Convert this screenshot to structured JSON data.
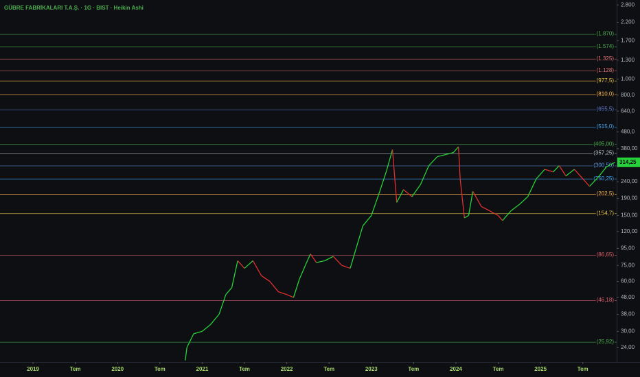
{
  "chart_data": {
    "type": "line",
    "title": "GÜBRE FABRİKALARI T.A.Ş. · 1G · BIST · Heikin Ashi",
    "log_scale": true,
    "up_color": "#26d13a",
    "down_color": "#e0302f",
    "xlim": [
      2018.61,
      2025.9
    ],
    "xticks": [
      {
        "value": 2019,
        "label": "2019"
      },
      {
        "value": 2019.5,
        "label": "Tem"
      },
      {
        "value": 2020,
        "label": "2020"
      },
      {
        "value": 2020.5,
        "label": "Tem"
      },
      {
        "value": 2021,
        "label": "2021"
      },
      {
        "value": 2021.5,
        "label": "Tem"
      },
      {
        "value": 2022,
        "label": "2022"
      },
      {
        "value": 2022.5,
        "label": "Tem"
      },
      {
        "value": 2023,
        "label": "2023"
      },
      {
        "value": 2023.5,
        "label": "Tem"
      },
      {
        "value": 2024,
        "label": "2024"
      },
      {
        "value": 2024.5,
        "label": "Tem"
      },
      {
        "value": 2025,
        "label": "2025"
      },
      {
        "value": 2025.5,
        "label": "Tem"
      }
    ],
    "ylim": [
      19.6,
      3000
    ],
    "yticks": [
      {
        "value": 24,
        "label": "24,00"
      },
      {
        "value": 30,
        "label": "30,00"
      },
      {
        "value": 38,
        "label": "38,00"
      },
      {
        "value": 48,
        "label": "48,00"
      },
      {
        "value": 60,
        "label": "60,00"
      },
      {
        "value": 75,
        "label": "75,00"
      },
      {
        "value": 95,
        "label": "95,00"
      },
      {
        "value": 120,
        "label": "120,00"
      },
      {
        "value": 150,
        "label": "150,00"
      },
      {
        "value": 190,
        "label": "190,00"
      },
      {
        "value": 240,
        "label": "240,00"
      },
      {
        "value": 380,
        "label": "380,00"
      },
      {
        "value": 480,
        "label": "480,0"
      },
      {
        "value": 640,
        "label": "640,0"
      },
      {
        "value": 800,
        "label": "800,0"
      },
      {
        "value": 1000,
        "label": "1.000"
      },
      {
        "value": 1300,
        "label": "1.300"
      },
      {
        "value": 1700,
        "label": "1.700"
      },
      {
        "value": 2200,
        "label": "2.200"
      },
      {
        "value": 2800,
        "label": "2.800"
      }
    ],
    "levels": [
      {
        "value": 1870,
        "label": "(1.870)",
        "color": "#4caf50"
      },
      {
        "value": 1574,
        "label": "(1.574)",
        "color": "#4caf50"
      },
      {
        "value": 1325,
        "label": "(1.325)",
        "color": "#e57373"
      },
      {
        "value": 1128,
        "label": "(1.128)",
        "color": "#e57373"
      },
      {
        "value": 977.5,
        "label": "(977,5)",
        "color": "#f0c040"
      },
      {
        "value": 810,
        "label": "(810,0)",
        "color": "#ffb74d"
      },
      {
        "value": 655.5,
        "label": "(655,5)",
        "color": "#5c7bd6"
      },
      {
        "value": 515,
        "label": "(515,0)",
        "color": "#42a5f5"
      },
      {
        "value": 405,
        "label": "(405,00)",
        "color": "#4caf50"
      },
      {
        "value": 357.25,
        "label": "(357,25)",
        "color": "#b0bec5"
      },
      {
        "value": 300.5,
        "label": "(300,50)",
        "color": "#5c9ce6"
      },
      {
        "value": 250.25,
        "label": "(250,25)",
        "color": "#42a5f5"
      },
      {
        "value": 202.5,
        "label": "(202,5)",
        "color": "#ffb74d"
      },
      {
        "value": 154.7,
        "label": "(154,7)",
        "color": "#e0c050"
      },
      {
        "value": 86.65,
        "label": "(86,65)",
        "color": "#e06070"
      },
      {
        "value": 46.18,
        "label": "(46,18)",
        "color": "#e06070"
      },
      {
        "value": 25.92,
        "label": "(25,92)",
        "color": "#4caf50"
      }
    ],
    "last_price_label": "314,25",
    "x": [
      2020.8,
      2020.82,
      2020.9,
      2021.0,
      2021.1,
      2021.2,
      2021.28,
      2021.35,
      2021.42,
      2021.5,
      2021.6,
      2021.7,
      2021.8,
      2021.9,
      2022.0,
      2022.08,
      2022.15,
      2022.22,
      2022.28,
      2022.35,
      2022.45,
      2022.55,
      2022.65,
      2022.75,
      2022.82,
      2022.9,
      2023.0,
      2023.1,
      2023.18,
      2023.25,
      2023.3,
      2023.38,
      2023.48,
      2023.58,
      2023.68,
      2023.78,
      2023.88,
      2023.97,
      2024.03,
      2024.05,
      2024.1,
      2024.15,
      2024.2,
      2024.3,
      2024.4,
      2024.5,
      2024.55,
      2024.65,
      2024.75,
      2024.85,
      2024.95,
      2025.05,
      2025.15,
      2025.22,
      2025.3,
      2025.4,
      2025.5,
      2025.58,
      2025.68,
      2025.78,
      2025.88
    ],
    "series": [
      {
        "values": [
          20,
          24,
          29,
          30,
          33,
          38,
          50,
          55,
          80,
          72,
          80,
          65,
          60,
          52,
          50,
          48,
          62,
          75,
          88,
          78,
          80,
          85,
          75,
          72,
          95,
          130,
          150,
          210,
          280,
          375,
          180,
          215,
          195,
          230,
          300,
          340,
          350,
          360,
          390,
          250,
          145,
          150,
          210,
          170,
          160,
          150,
          140,
          160,
          175,
          195,
          250,
          285,
          275,
          300,
          260,
          285,
          250,
          225,
          255,
          295,
          314.25
        ]
      }
    ]
  }
}
